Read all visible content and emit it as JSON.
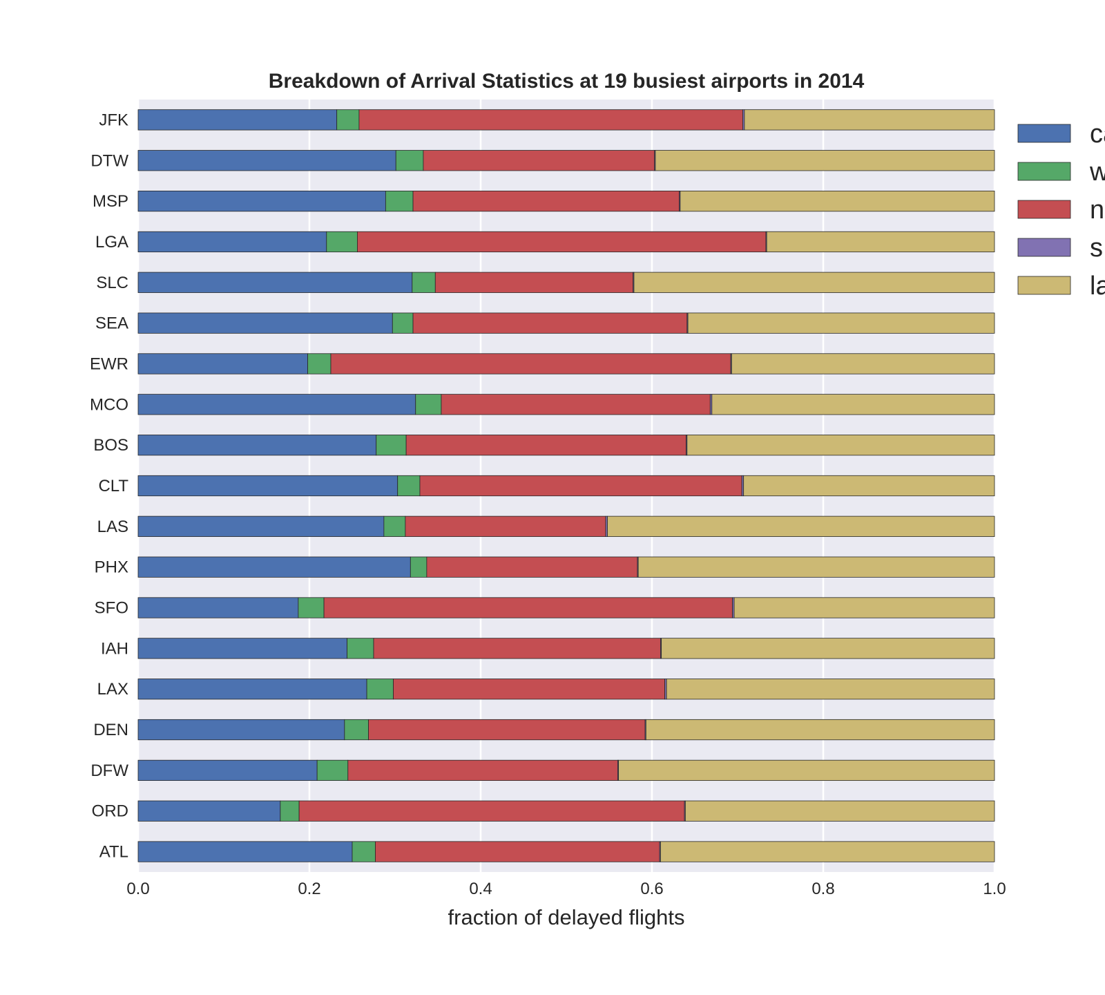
{
  "chart_data": {
    "type": "bar",
    "orientation": "horizontal",
    "stacked": true,
    "title": "Breakdown of Arrival Statistics at 19 busiest airports in 2014",
    "xlabel": "fraction of delayed flights",
    "ylabel": "",
    "xlim": [
      0,
      1
    ],
    "xticks": [
      "0.0",
      "0.2",
      "0.4",
      "0.6",
      "0.8",
      "1.0"
    ],
    "grid": true,
    "legend_placement": "right (outside plot, partially clipped)",
    "categories": [
      "JFK",
      "DTW",
      "MSP",
      "LGA",
      "SLC",
      "SEA",
      "EWR",
      "MCO",
      "BOS",
      "CLT",
      "LAS",
      "PHX",
      "SFO",
      "IAH",
      "LAX",
      "DEN",
      "DFW",
      "ORD",
      "ATL"
    ],
    "series": [
      {
        "name": "ca",
        "color": "#4c72b0",
        "values": [
          0.232,
          0.301,
          0.289,
          0.22,
          0.32,
          0.297,
          0.198,
          0.324,
          0.278,
          0.303,
          0.287,
          0.318,
          0.187,
          0.244,
          0.267,
          0.241,
          0.209,
          0.166,
          0.25
        ]
      },
      {
        "name": "w",
        "color": "#55a868",
        "values": [
          0.026,
          0.032,
          0.032,
          0.036,
          0.027,
          0.024,
          0.027,
          0.03,
          0.035,
          0.026,
          0.025,
          0.019,
          0.03,
          0.031,
          0.031,
          0.028,
          0.036,
          0.022,
          0.027
        ]
      },
      {
        "name": "n",
        "color": "#c44e52",
        "values": [
          0.448,
          0.27,
          0.311,
          0.477,
          0.231,
          0.32,
          0.467,
          0.314,
          0.327,
          0.376,
          0.234,
          0.246,
          0.477,
          0.335,
          0.317,
          0.323,
          0.315,
          0.45,
          0.332
        ]
      },
      {
        "name": "s",
        "color": "#8172b2",
        "values": [
          0.002,
          0.001,
          0.001,
          0.001,
          0.001,
          0.001,
          0.001,
          0.002,
          0.001,
          0.002,
          0.002,
          0.001,
          0.002,
          0.001,
          0.002,
          0.001,
          0.001,
          0.001,
          0.001
        ]
      },
      {
        "name": "la",
        "color": "#ccb974",
        "values": [
          0.292,
          0.396,
          0.367,
          0.266,
          0.421,
          0.358,
          0.307,
          0.33,
          0.359,
          0.293,
          0.452,
          0.416,
          0.304,
          0.389,
          0.383,
          0.407,
          0.439,
          0.361,
          0.39
        ]
      }
    ]
  }
}
